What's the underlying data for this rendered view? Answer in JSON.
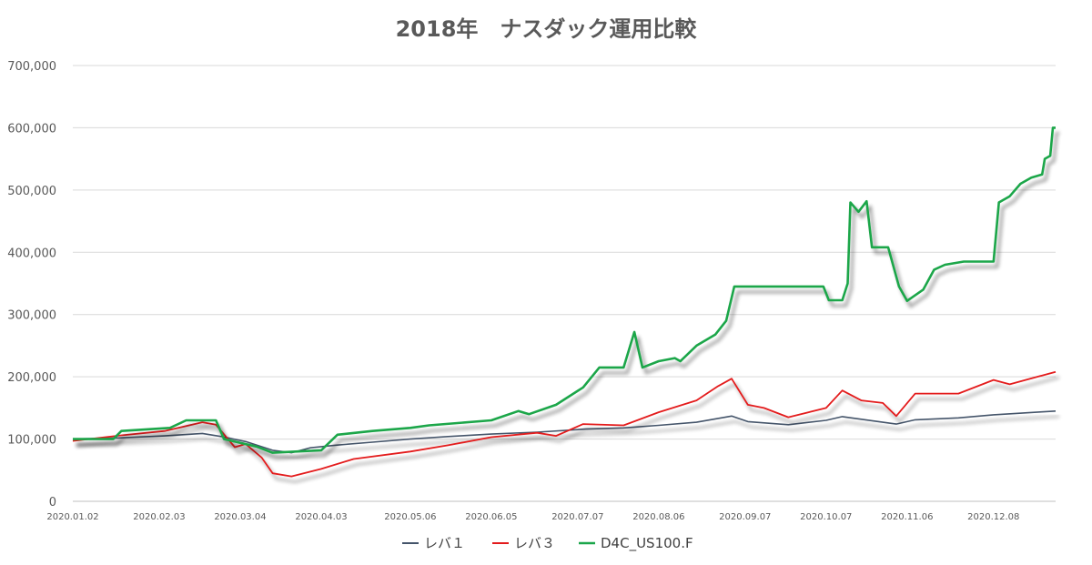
{
  "chart_data": {
    "type": "line",
    "title": "2018年　ナスダック運用比較",
    "xlabel": "",
    "ylabel": "",
    "ylim": [
      0,
      700000
    ],
    "yticks": [
      0,
      100000,
      200000,
      300000,
      400000,
      500000,
      600000,
      700000
    ],
    "ytick_labels": [
      "0",
      "100,000",
      "200,000",
      "300,000",
      "400,000",
      "500,000",
      "600,000",
      "700,000"
    ],
    "xlim": [
      "2020-01-02",
      "2020-12-31"
    ],
    "xtick_labels": [
      "2020.01.02",
      "2020.02.03",
      "2020.03.04",
      "2020.04.03",
      "2020.05.06",
      "2020.06.05",
      "2020.07.07",
      "2020.08.06",
      "2020.09.07",
      "2020.10.07",
      "2020.11.06",
      "2020.12.08"
    ],
    "xtick_dates": [
      "2020-01-02",
      "2020-02-03",
      "2020-03-04",
      "2020-04-03",
      "2020-05-06",
      "2020-06-05",
      "2020-07-07",
      "2020-08-06",
      "2020-09-07",
      "2020-10-07",
      "2020-11-06",
      "2020-12-08"
    ],
    "grid": true,
    "legend_position": "bottom",
    "series": [
      {
        "name": "レバ１",
        "color": "#44546a",
        "points": [
          [
            "2020-01-02",
            100000
          ],
          [
            "2020-01-20",
            102000
          ],
          [
            "2020-02-05",
            105000
          ],
          [
            "2020-02-19",
            109000
          ],
          [
            "2020-02-26",
            104000
          ],
          [
            "2020-03-06",
            96000
          ],
          [
            "2020-03-16",
            82000
          ],
          [
            "2020-03-23",
            78000
          ],
          [
            "2020-03-30",
            86000
          ],
          [
            "2020-04-08",
            90000
          ],
          [
            "2020-04-22",
            95000
          ],
          [
            "2020-05-06",
            100000
          ],
          [
            "2020-05-20",
            104000
          ],
          [
            "2020-06-05",
            108000
          ],
          [
            "2020-06-22",
            111000
          ],
          [
            "2020-07-10",
            116000
          ],
          [
            "2020-07-24",
            118000
          ],
          [
            "2020-08-06",
            122000
          ],
          [
            "2020-08-20",
            127000
          ],
          [
            "2020-09-02",
            137000
          ],
          [
            "2020-09-08",
            128000
          ],
          [
            "2020-09-23",
            123000
          ],
          [
            "2020-10-07",
            130000
          ],
          [
            "2020-10-13",
            136000
          ],
          [
            "2020-10-28",
            127000
          ],
          [
            "2020-11-02",
            124000
          ],
          [
            "2020-11-09",
            131000
          ],
          [
            "2020-11-25",
            134000
          ],
          [
            "2020-12-08",
            139000
          ],
          [
            "2020-12-31",
            145000
          ]
        ]
      },
      {
        "name": "レバ３",
        "color": "#e31a1c",
        "points": [
          [
            "2020-01-02",
            97000
          ],
          [
            "2020-01-20",
            106000
          ],
          [
            "2020-02-05",
            113000
          ],
          [
            "2020-02-19",
            127000
          ],
          [
            "2020-02-24",
            123000
          ],
          [
            "2020-03-02",
            87000
          ],
          [
            "2020-03-06",
            92000
          ],
          [
            "2020-03-12",
            70000
          ],
          [
            "2020-03-16",
            45000
          ],
          [
            "2020-03-23",
            40000
          ],
          [
            "2020-04-03",
            52000
          ],
          [
            "2020-04-15",
            68000
          ],
          [
            "2020-05-06",
            80000
          ],
          [
            "2020-05-20",
            90000
          ],
          [
            "2020-06-05",
            103000
          ],
          [
            "2020-06-22",
            110000
          ],
          [
            "2020-06-29",
            105000
          ],
          [
            "2020-07-09",
            124000
          ],
          [
            "2020-07-24",
            122000
          ],
          [
            "2020-07-29",
            130000
          ],
          [
            "2020-08-06",
            143000
          ],
          [
            "2020-08-20",
            162000
          ],
          [
            "2020-08-28",
            185000
          ],
          [
            "2020-09-02",
            197000
          ],
          [
            "2020-09-08",
            155000
          ],
          [
            "2020-09-14",
            150000
          ],
          [
            "2020-09-23",
            135000
          ],
          [
            "2020-10-07",
            150000
          ],
          [
            "2020-10-13",
            178000
          ],
          [
            "2020-10-20",
            162000
          ],
          [
            "2020-10-28",
            158000
          ],
          [
            "2020-11-02",
            137000
          ],
          [
            "2020-11-09",
            173000
          ],
          [
            "2020-11-25",
            173000
          ],
          [
            "2020-12-08",
            195000
          ],
          [
            "2020-12-14",
            188000
          ],
          [
            "2020-12-31",
            208000
          ]
        ]
      },
      {
        "name": "D4C_US100.F",
        "color": "#1aa64a",
        "points": [
          [
            "2020-01-02",
            100000
          ],
          [
            "2020-01-17",
            100000
          ],
          [
            "2020-01-20",
            113000
          ],
          [
            "2020-02-07",
            118000
          ],
          [
            "2020-02-13",
            130000
          ],
          [
            "2020-02-24",
            130000
          ],
          [
            "2020-02-27",
            100000
          ],
          [
            "2020-03-10",
            88000
          ],
          [
            "2020-03-16",
            78000
          ],
          [
            "2020-04-03",
            82000
          ],
          [
            "2020-04-09",
            107000
          ],
          [
            "2020-04-22",
            113000
          ],
          [
            "2020-05-06",
            118000
          ],
          [
            "2020-05-13",
            122000
          ],
          [
            "2020-06-05",
            130000
          ],
          [
            "2020-06-15",
            145000
          ],
          [
            "2020-06-19",
            140000
          ],
          [
            "2020-06-29",
            155000
          ],
          [
            "2020-07-09",
            183000
          ],
          [
            "2020-07-15",
            215000
          ],
          [
            "2020-07-24",
            215000
          ],
          [
            "2020-07-28",
            272000
          ],
          [
            "2020-07-31",
            215000
          ],
          [
            "2020-08-06",
            225000
          ],
          [
            "2020-08-12",
            230000
          ],
          [
            "2020-08-14",
            225000
          ],
          [
            "2020-08-20",
            250000
          ],
          [
            "2020-08-27",
            268000
          ],
          [
            "2020-08-31",
            290000
          ],
          [
            "2020-09-03",
            345000
          ],
          [
            "2020-10-06",
            345000
          ],
          [
            "2020-10-08",
            323000
          ],
          [
            "2020-10-13",
            323000
          ],
          [
            "2020-10-15",
            350000
          ],
          [
            "2020-10-16",
            480000
          ],
          [
            "2020-10-19",
            465000
          ],
          [
            "2020-10-22",
            482000
          ],
          [
            "2020-10-24",
            408000
          ],
          [
            "2020-10-30",
            408000
          ],
          [
            "2020-11-03",
            345000
          ],
          [
            "2020-11-06",
            322000
          ],
          [
            "2020-11-12",
            340000
          ],
          [
            "2020-11-16",
            372000
          ],
          [
            "2020-11-20",
            380000
          ],
          [
            "2020-11-27",
            385000
          ],
          [
            "2020-12-08",
            385000
          ],
          [
            "2020-12-10",
            480000
          ],
          [
            "2020-12-14",
            490000
          ],
          [
            "2020-12-18",
            510000
          ],
          [
            "2020-12-22",
            520000
          ],
          [
            "2020-12-26",
            525000
          ],
          [
            "2020-12-27",
            550000
          ],
          [
            "2020-12-29",
            555000
          ],
          [
            "2020-12-30",
            600000
          ],
          [
            "2020-12-31",
            600000
          ]
        ]
      }
    ]
  }
}
